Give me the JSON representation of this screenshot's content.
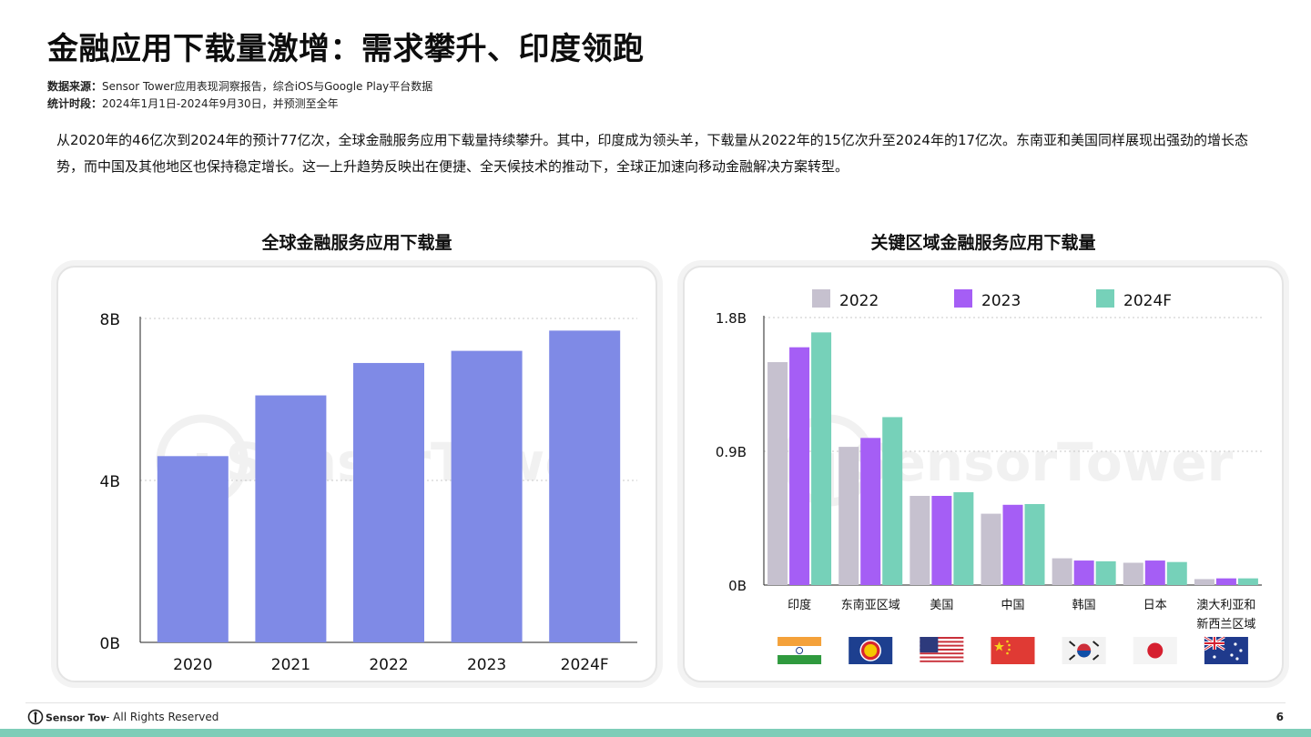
{
  "title": "金融应用下载量激增：需求攀升、印度领跑",
  "meta": {
    "source_label": "数据来源：",
    "source_value": "Sensor Tower应用表现洞察报告，综合iOS与Google Play平台数据",
    "period_label": "统计时段：",
    "period_value": "2024年1月1日-2024年9月30日，并预测至全年"
  },
  "summary": "从2020年的46亿次到2024年的预计77亿次，全球金融服务应用下载量持续攀升。其中，印度成为领头羊，下载量从2022年的15亿次升至2024年的17亿次。东南亚和美国同样展现出强劲的增长态势，而中国及其他地区也保持稳定增长。这一上升趋势反映出在便捷、全天候技术的推动下，全球正加速向移动金融解决方案转型。",
  "watermark": "SensorTower",
  "colors": {
    "bar_left": "#7f8ae6",
    "s2022": "#c6c1cf",
    "s2023": "#a55ef5",
    "s2024": "#76d1b9",
    "accent_bottom": "#7ecdb8"
  },
  "chart_data": [
    {
      "type": "bar",
      "title": "全球金融服务应用下载量",
      "categories": [
        "2020",
        "2021",
        "2022",
        "2023",
        "2024F"
      ],
      "values": [
        4.6,
        6.1,
        6.9,
        7.2,
        7.7
      ],
      "ylim": [
        0,
        8
      ],
      "yticks": [
        0,
        4,
        8
      ],
      "ytick_labels": [
        "0B",
        "4B",
        "8B"
      ],
      "grid": true
    },
    {
      "type": "bar",
      "title": "关键区域金融服务应用下载量",
      "categories": [
        "印度",
        "东南亚区域",
        "美国",
        "中国",
        "韩国",
        "日本",
        "澳大利亚和新西兰区域"
      ],
      "category_lines": [
        [
          "印度"
        ],
        [
          "东南亚区域"
        ],
        [
          "美国"
        ],
        [
          "中国"
        ],
        [
          "韩国"
        ],
        [
          "日本"
        ],
        [
          "澳大利亚和",
          "新西兰区域"
        ]
      ],
      "series": [
        {
          "name": "2022",
          "values": [
            1.5,
            0.93,
            0.6,
            0.48,
            0.18,
            0.15,
            0.04
          ]
        },
        {
          "name": "2023",
          "values": [
            1.6,
            0.99,
            0.6,
            0.54,
            0.165,
            0.165,
            0.045
          ]
        },
        {
          "name": "2024F",
          "values": [
            1.7,
            1.13,
            0.625,
            0.545,
            0.16,
            0.155,
            0.045
          ]
        }
      ],
      "ylim": [
        0,
        1.8
      ],
      "yticks": [
        0,
        0.9,
        1.8
      ],
      "ytick_labels": [
        "0B",
        "0.9B",
        "1.8B"
      ],
      "legend": "top",
      "grid": true,
      "flags": [
        "india-flag-icon",
        "asean-flag-icon",
        "usa-flag-icon",
        "china-flag-icon",
        "korea-flag-icon",
        "japan-flag-icon",
        "australia-flag-icon"
      ]
    }
  ],
  "footer": {
    "logo_text": "Sensor Tower",
    "rights": "- All Rights Reserved",
    "page": "6"
  }
}
